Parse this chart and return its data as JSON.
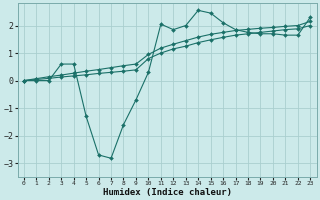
{
  "background_color": "#cceaea",
  "grid_color": "#aacfcf",
  "line_color": "#1a7068",
  "xlabel": "Humidex (Indice chaleur)",
  "xlim": [
    -0.5,
    23.5
  ],
  "ylim": [
    -3.5,
    2.8
  ],
  "yticks": [
    -3,
    -2,
    -1,
    0,
    1,
    2
  ],
  "xticks": [
    0,
    1,
    2,
    3,
    4,
    5,
    6,
    7,
    8,
    9,
    10,
    11,
    12,
    13,
    14,
    15,
    16,
    17,
    18,
    19,
    20,
    21,
    22,
    23
  ],
  "series1_x": [
    0,
    1,
    2,
    3,
    4,
    5,
    6,
    7,
    8,
    9,
    10,
    11,
    12,
    13,
    14,
    15,
    16,
    17,
    18,
    19,
    20,
    21,
    22,
    23
  ],
  "series1_y": [
    0.0,
    0.0,
    0.0,
    0.6,
    0.6,
    -1.3,
    -2.7,
    -2.82,
    -1.6,
    -0.7,
    0.3,
    2.05,
    1.85,
    2.0,
    2.55,
    2.45,
    2.1,
    1.85,
    1.75,
    1.7,
    1.7,
    1.65,
    1.65,
    2.3
  ],
  "series2_x": [
    0,
    1,
    2,
    3,
    4,
    5,
    6,
    7,
    8,
    9,
    10,
    11,
    12,
    13,
    14,
    15,
    16,
    17,
    18,
    19,
    20,
    21,
    22,
    23
  ],
  "series2_y": [
    0.0,
    0.04,
    0.08,
    0.13,
    0.17,
    0.21,
    0.26,
    0.3,
    0.34,
    0.39,
    0.8,
    1.0,
    1.15,
    1.25,
    1.38,
    1.48,
    1.57,
    1.65,
    1.7,
    1.75,
    1.8,
    1.85,
    1.88,
    2.0
  ],
  "series3_x": [
    0,
    1,
    2,
    3,
    4,
    5,
    6,
    7,
    8,
    9,
    10,
    11,
    12,
    13,
    14,
    15,
    16,
    17,
    18,
    19,
    20,
    21,
    22,
    23
  ],
  "series3_y": [
    0.0,
    0.07,
    0.14,
    0.2,
    0.27,
    0.34,
    0.4,
    0.47,
    0.54,
    0.6,
    0.95,
    1.18,
    1.32,
    1.45,
    1.58,
    1.68,
    1.75,
    1.82,
    1.86,
    1.9,
    1.93,
    1.97,
    2.0,
    2.15
  ]
}
